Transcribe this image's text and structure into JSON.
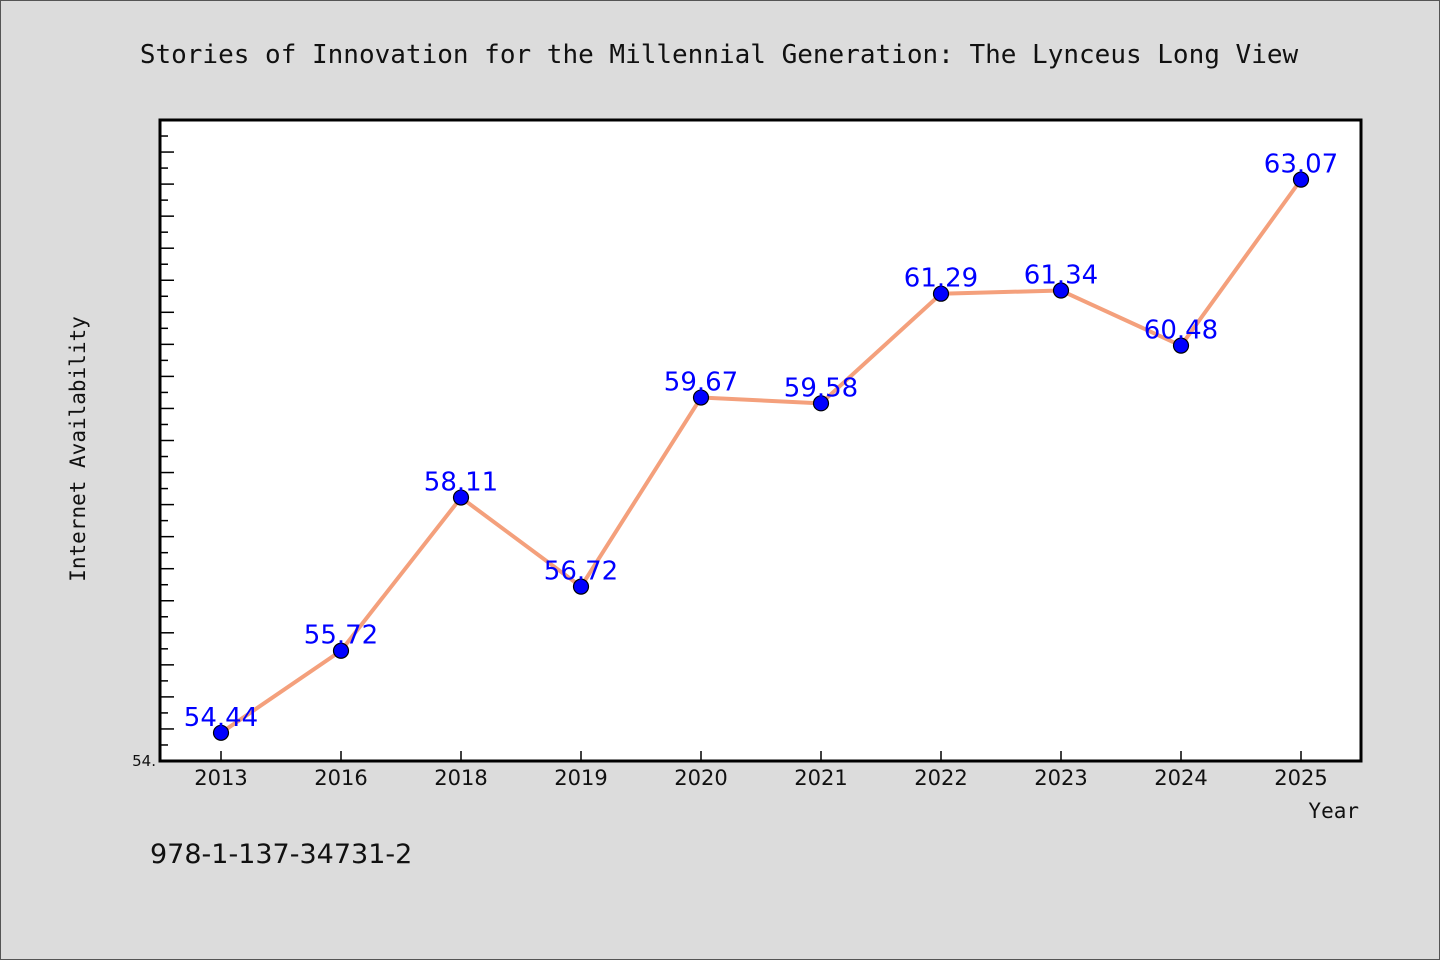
{
  "chart_data": {
    "type": "line",
    "title": "Stories of Innovation for the Millennial Generation: The Lynceus Long View",
    "xlabel": "Year",
    "ylabel": "Internet Availability",
    "categories": [
      "2013",
      "2016",
      "2018",
      "2019",
      "2020",
      "2021",
      "2022",
      "2023",
      "2024",
      "2025"
    ],
    "values": [
      54.44,
      55.72,
      58.11,
      56.72,
      59.67,
      59.58,
      61.29,
      61.34,
      60.48,
      63.07
    ],
    "data_labels": [
      "54.44",
      "55.72",
      "58.11",
      "56.72",
      "59.67",
      "59.58",
      "61.29",
      "61.34",
      "60.48",
      "63.07"
    ],
    "ytick_labels": [
      "54."
    ],
    "ylim": [
      54.0,
      64.0
    ],
    "grid": false,
    "line_color": "#f4a07c",
    "marker_color": "#0000ff",
    "label_color": "#0000ff",
    "plot_background": "#ffffff",
    "figure_background": "#dcdcdc"
  },
  "footer": {
    "text": "978-1-137-34731-2"
  }
}
